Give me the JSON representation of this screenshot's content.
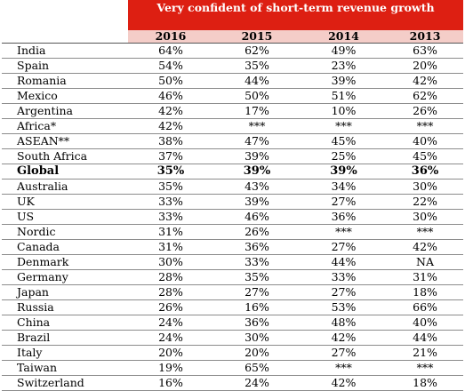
{
  "table": {
    "header_title": "Very confident of short-term revenue growth",
    "years": [
      "2016",
      "2015",
      "2014",
      "2013"
    ],
    "rows": [
      {
        "country": "India",
        "values": [
          "64%",
          "62%",
          "49%",
          "63%"
        ],
        "bold": false
      },
      {
        "country": "Spain",
        "values": [
          "54%",
          "35%",
          "23%",
          "20%"
        ],
        "bold": false
      },
      {
        "country": "Romania",
        "values": [
          "50%",
          "44%",
          "39%",
          "42%"
        ],
        "bold": false
      },
      {
        "country": "Mexico",
        "values": [
          "46%",
          "50%",
          "51%",
          "62%"
        ],
        "bold": false
      },
      {
        "country": "Argentina",
        "values": [
          "42%",
          "17%",
          "10%",
          "26%"
        ],
        "bold": false
      },
      {
        "country": "Africa*",
        "values": [
          "42%",
          "***",
          "***",
          "***"
        ],
        "bold": false
      },
      {
        "country": "ASEAN**",
        "values": [
          "38%",
          "47%",
          "45%",
          "40%"
        ],
        "bold": false
      },
      {
        "country": "South Africa",
        "values": [
          "37%",
          "39%",
          "25%",
          "45%"
        ],
        "bold": false
      },
      {
        "country": "Global",
        "values": [
          "35%",
          "39%",
          "39%",
          "36%"
        ],
        "bold": true
      },
      {
        "country": "Australia",
        "values": [
          "35%",
          "43%",
          "34%",
          "30%"
        ],
        "bold": false
      },
      {
        "country": "UK",
        "values": [
          "33%",
          "39%",
          "27%",
          "22%"
        ],
        "bold": false
      },
      {
        "country": "US",
        "values": [
          "33%",
          "46%",
          "36%",
          "30%"
        ],
        "bold": false
      },
      {
        "country": "Nordic",
        "values": [
          "31%",
          "26%",
          "***",
          "***"
        ],
        "bold": false
      },
      {
        "country": "Canada",
        "values": [
          "31%",
          "36%",
          "27%",
          "42%"
        ],
        "bold": false
      },
      {
        "country": "Denmark",
        "values": [
          "30%",
          "33%",
          "44%",
          "NA"
        ],
        "bold": false
      },
      {
        "country": "Germany",
        "values": [
          "28%",
          "35%",
          "33%",
          "31%"
        ],
        "bold": false
      },
      {
        "country": "Japan",
        "values": [
          "28%",
          "27%",
          "27%",
          "18%"
        ],
        "bold": false
      },
      {
        "country": "Russia",
        "values": [
          "26%",
          "16%",
          "53%",
          "66%"
        ],
        "bold": false
      },
      {
        "country": "China",
        "values": [
          "24%",
          "36%",
          "48%",
          "40%"
        ],
        "bold": false
      },
      {
        "country": "Brazil",
        "values": [
          "24%",
          "30%",
          "42%",
          "44%"
        ],
        "bold": false
      },
      {
        "country": "Italy",
        "values": [
          "20%",
          "20%",
          "27%",
          "21%"
        ],
        "bold": false
      },
      {
        "country": "Taiwan",
        "values": [
          "19%",
          "65%",
          "***",
          "***"
        ],
        "bold": false
      },
      {
        "country": "Switzerland",
        "values": [
          "16%",
          "24%",
          "42%",
          "18%"
        ],
        "bold": false
      }
    ]
  },
  "colors": {
    "header_red": "#dd1f12",
    "year_row_pink": "#f4cdc8"
  }
}
